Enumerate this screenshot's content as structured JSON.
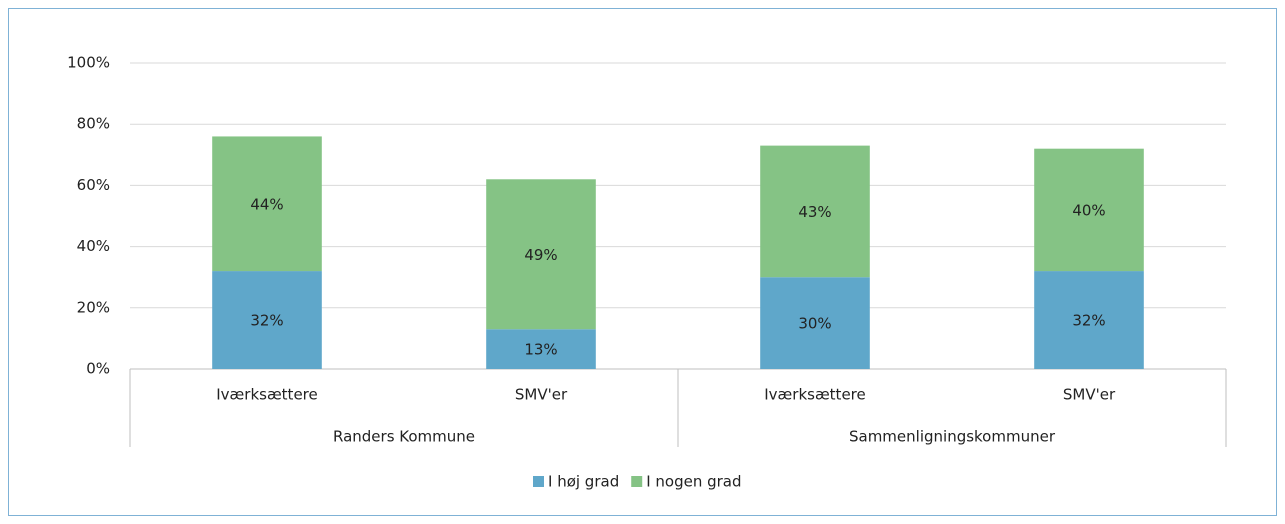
{
  "chart_data": {
    "type": "stacked_bar",
    "categories": [
      "Iværksættere",
      "SMV'er",
      "Iværksættere",
      "SMV'er"
    ],
    "category_groups": [
      "Randers Kommune",
      "Sammenligningskommuner"
    ],
    "series": [
      {
        "name": "I høj grad",
        "color": "#5fa7ca",
        "values": [
          32,
          13,
          30,
          32
        ],
        "value_labels": [
          "32%",
          "13%",
          "30%",
          "32%"
        ]
      },
      {
        "name": "I nogen grad",
        "color": "#85c385",
        "values": [
          44,
          49,
          43,
          40
        ],
        "value_labels": [
          "44%",
          "49%",
          "43%",
          "40%"
        ]
      }
    ],
    "ylim": [
      0,
      100
    ],
    "yticks": [
      {
        "value": 0,
        "label": "0%"
      },
      {
        "value": 20,
        "label": "20%"
      },
      {
        "value": 40,
        "label": "40%"
      },
      {
        "value": 60,
        "label": "60%"
      },
      {
        "value": 80,
        "label": "80%"
      },
      {
        "value": 100,
        "label": "100%"
      }
    ],
    "grid": true,
    "legend": "bottom"
  }
}
